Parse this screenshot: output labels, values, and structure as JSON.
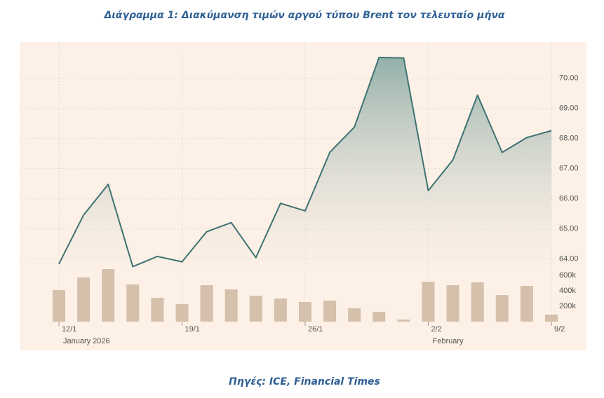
{
  "title": "Διάγραμμα 1: Διακύμανση τιμών αργού τύπου Brent τον τελευταίο μήνα",
  "source": "Πηγές: ICE, Financial Times",
  "chart_data": [
    {
      "type": "area",
      "categories": [
        "12/1",
        null,
        null,
        null,
        null,
        "19/1",
        null,
        null,
        null,
        null,
        "26/1",
        null,
        null,
        null,
        null,
        "2/2",
        null,
        null,
        null,
        null,
        "9/2"
      ],
      "month_labels": [
        {
          "label": "January 2026",
          "index": 0
        },
        {
          "label": "February",
          "index": 15
        }
      ],
      "values": [
        63.84,
        65.46,
        66.48,
        63.75,
        64.09,
        63.91,
        64.91,
        65.21,
        64.05,
        65.85,
        65.6,
        67.54,
        68.38,
        70.69,
        70.67,
        66.27,
        67.29,
        69.44,
        67.54,
        68.03,
        68.26
      ],
      "color": "#3d7372",
      "ylim": [
        63.6,
        71.2
      ],
      "yticks": [
        {
          "value": 64,
          "label": "64.00"
        },
        {
          "value": 65,
          "label": "65.00"
        },
        {
          "value": 66,
          "label": "66.00"
        },
        {
          "value": 67,
          "label": "67.00"
        },
        {
          "value": 68,
          "label": "68.00"
        },
        {
          "value": 69,
          "label": "69.00"
        },
        {
          "value": 70,
          "label": "70.00"
        }
      ],
      "grid": true
    },
    {
      "type": "bar",
      "values": [
        409000,
        573000,
        682000,
        482000,
        309000,
        227000,
        473000,
        418000,
        336000,
        300000,
        255000,
        273000,
        173000,
        127000,
        27000,
        518000,
        473000,
        509000,
        345000,
        464000,
        91000
      ],
      "color": "#d4c0ab",
      "ylim": [
        0,
        655000
      ],
      "yticks": [
        {
          "value": 200000,
          "label": "200k"
        },
        {
          "value": 400000,
          "label": "400k"
        },
        {
          "value": 600000,
          "label": "600k"
        }
      ]
    }
  ]
}
